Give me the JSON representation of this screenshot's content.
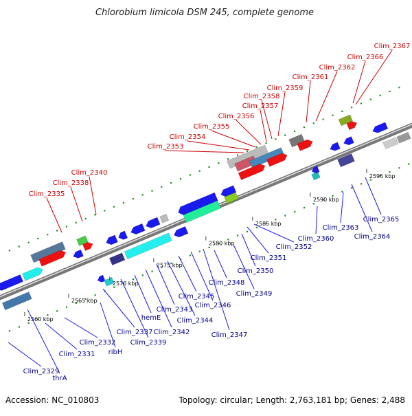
{
  "title": "Chlorobium limicola DSM 245, complete genome",
  "footer": {
    "accession": "Accession: NC_010803",
    "summary": "Topology: circular; Length: 2,763,181 bp; Genes: 2,488"
  },
  "ticks": [
    "2560 kbp",
    "2565 kbp",
    "2570 kbp",
    "2575 kbp",
    "2580 kbp",
    "2585 kbp",
    "2590 kbp",
    "2595 kbp"
  ],
  "top_labels": [
    "Clim_2335",
    "Clim_2338",
    "Clim_2340",
    "Clim_2353",
    "Clim_2354",
    "Clim_2355",
    "Clim_2356",
    "Clim_2357",
    "Clim_2358",
    "Clim_2359",
    "Clim_2361",
    "Clim_2362",
    "Clim_2366",
    "Clim_2367"
  ],
  "bottom_labels": [
    "Clim_2329",
    "thrA",
    "Clim_2331",
    "Clim_2332",
    "ribH",
    "Clim_2337",
    "Clim_2339",
    "hemE",
    "Clim_2342",
    "Clim_2343",
    "Clim_2344",
    "Clim_2345",
    "Clim_2346",
    "Clim_2347",
    "Clim_2348",
    "Clim_2349",
    "Clim_2350",
    "Clim_2351",
    "Clim_2352",
    "Clim_2360",
    "Clim_2363",
    "Clim_2364",
    "Clim_2365"
  ],
  "colors": {
    "top_label": "#cc0000",
    "bottom_label": "#00008b",
    "backbone": "#888888"
  }
}
